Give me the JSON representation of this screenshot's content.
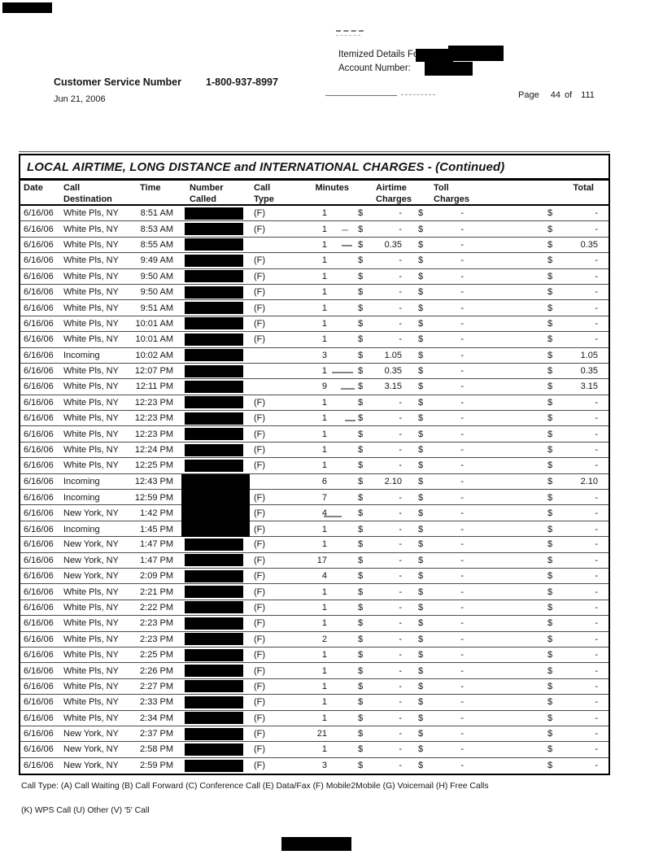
{
  "header": {
    "itemized_label": "Itemized Details For:",
    "account_label": "Account Number:",
    "customer_service_label": "Customer Service Number",
    "customer_service_number": "1-800-937-8997",
    "print_date": "Jun 21, 2006",
    "page": {
      "label": "Page",
      "current": "44",
      "of_label": "of",
      "total": "111"
    }
  },
  "table": {
    "title": "LOCAL AIRTIME, LONG DISTANCE and INTERNATIONAL CHARGES  - (Continued)",
    "currency": "$",
    "columns": {
      "date": "Date",
      "destination": "Call\nDestination",
      "time": "Time",
      "number_called": "Number\nCalled",
      "call_type": "Call\nType",
      "minutes": "Minutes",
      "airtime": "Airtime\nCharges",
      "toll": "Toll\nCharges",
      "total": "Total"
    },
    "rows": [
      {
        "date": "6/16/06",
        "destination": "White Pls, NY",
        "time": "8:51 AM",
        "type": "(F)",
        "minutes": "1",
        "airtime": "-",
        "toll": "-",
        "total": "-"
      },
      {
        "date": "6/16/06",
        "destination": "White Pls, NY",
        "time": "8:53 AM",
        "type": "(F)",
        "minutes": "1",
        "airtime": "-",
        "toll": "-",
        "total": "-"
      },
      {
        "date": "6/16/06",
        "destination": "White Pls, NY",
        "time": "8:55 AM",
        "type": "",
        "minutes": "1",
        "airtime": "0.35",
        "toll": "-",
        "total": "0.35"
      },
      {
        "date": "6/16/06",
        "destination": "White Pls, NY",
        "time": "9:49 AM",
        "type": "(F)",
        "minutes": "1",
        "airtime": "-",
        "toll": "-",
        "total": "-"
      },
      {
        "date": "6/16/06",
        "destination": "White Pls, NY",
        "time": "9:50 AM",
        "type": "(F)",
        "minutes": "1",
        "airtime": "-",
        "toll": "-",
        "total": "-"
      },
      {
        "date": "6/16/06",
        "destination": "White Pls, NY",
        "time": "9:50 AM",
        "type": "(F)",
        "minutes": "1",
        "airtime": "-",
        "toll": "-",
        "total": "-"
      },
      {
        "date": "6/16/06",
        "destination": "White Pls, NY",
        "time": "9:51 AM",
        "type": "(F)",
        "minutes": "1",
        "airtime": "-",
        "toll": "-",
        "total": "-"
      },
      {
        "date": "6/16/06",
        "destination": "White Pls, NY",
        "time": "10:01 AM",
        "type": "(F)",
        "minutes": "1",
        "airtime": "-",
        "toll": "-",
        "total": "-"
      },
      {
        "date": "6/16/06",
        "destination": "White Pls, NY",
        "time": "10:01 AM",
        "type": "(F)",
        "minutes": "1",
        "airtime": "-",
        "toll": "-",
        "total": "-"
      },
      {
        "date": "6/16/06",
        "destination": "Incoming",
        "time": "10:02 AM",
        "type": "",
        "minutes": "3",
        "airtime": "1.05",
        "toll": "-",
        "total": "1.05"
      },
      {
        "date": "6/16/06",
        "destination": "White Pls, NY",
        "time": "12:07 PM",
        "type": "",
        "minutes": "1",
        "airtime": "0.35",
        "toll": "-",
        "total": "0.35"
      },
      {
        "date": "6/16/06",
        "destination": "White Pls, NY",
        "time": "12:11 PM",
        "type": "",
        "minutes": "9",
        "airtime": "3.15",
        "toll": "-",
        "total": "3.15"
      },
      {
        "date": "6/16/06",
        "destination": "White Pls, NY",
        "time": "12:23 PM",
        "type": "(F)",
        "minutes": "1",
        "airtime": "-",
        "toll": "-",
        "total": "-"
      },
      {
        "date": "6/16/06",
        "destination": "White Pls, NY",
        "time": "12:23 PM",
        "type": "(F)",
        "minutes": "1",
        "airtime": "-",
        "toll": "-",
        "total": "-"
      },
      {
        "date": "6/16/06",
        "destination": "White Pls, NY",
        "time": "12:23 PM",
        "type": "(F)",
        "minutes": "1",
        "airtime": "-",
        "toll": "-",
        "total": "-"
      },
      {
        "date": "6/16/06",
        "destination": "White Pls, NY",
        "time": "12:24 PM",
        "type": "(F)",
        "minutes": "1",
        "airtime": "-",
        "toll": "-",
        "total": "-"
      },
      {
        "date": "6/16/06",
        "destination": "White Pls, NY",
        "time": "12:25 PM",
        "type": "(F)",
        "minutes": "1",
        "airtime": "-",
        "toll": "-",
        "total": "-"
      },
      {
        "date": "6/16/06",
        "destination": "Incoming",
        "time": "12:43 PM",
        "type": "",
        "minutes": "6",
        "airtime": "2.10",
        "toll": "-",
        "total": "2.10",
        "merged_bar": true
      },
      {
        "date": "6/16/06",
        "destination": "Incoming",
        "time": "12:59 PM",
        "type": "(F)",
        "minutes": "7",
        "airtime": "-",
        "toll": "-",
        "total": "-",
        "merged_bar": true
      },
      {
        "date": "6/16/06",
        "destination": "New York, NY",
        "time": "1:42 PM",
        "type": "(F)",
        "minutes": "4",
        "airtime": "-",
        "toll": "-",
        "total": "-",
        "merged_bar": true
      },
      {
        "date": "6/16/06",
        "destination": "Incoming",
        "time": "1:45 PM",
        "type": "(F)",
        "minutes": "1",
        "airtime": "-",
        "toll": "-",
        "total": "-",
        "merged_bar": true
      },
      {
        "date": "6/16/06",
        "destination": "New York, NY",
        "time": "1:47 PM",
        "type": "(F)",
        "minutes": "1",
        "airtime": "-",
        "toll": "-",
        "total": "-"
      },
      {
        "date": "6/16/06",
        "destination": "New York, NY",
        "time": "1:47 PM",
        "type": "(F)",
        "minutes": "17",
        "airtime": "-",
        "toll": "-",
        "total": "-"
      },
      {
        "date": "6/16/06",
        "destination": "New York, NY",
        "time": "2:09 PM",
        "type": "(F)",
        "minutes": "4",
        "airtime": "-",
        "toll": "-",
        "total": "-"
      },
      {
        "date": "6/16/06",
        "destination": "White Pls, NY",
        "time": "2:21 PM",
        "type": "(F)",
        "minutes": "1",
        "airtime": "-",
        "toll": "-",
        "total": "-"
      },
      {
        "date": "6/16/06",
        "destination": "White Pls, NY",
        "time": "2:22 PM",
        "type": "(F)",
        "minutes": "1",
        "airtime": "-",
        "toll": "-",
        "total": "-"
      },
      {
        "date": "6/16/06",
        "destination": "White Pls, NY",
        "time": "2:23 PM",
        "type": "(F)",
        "minutes": "1",
        "airtime": "-",
        "toll": "-",
        "total": "-"
      },
      {
        "date": "6/16/06",
        "destination": "White Pls, NY",
        "time": "2:23 PM",
        "type": "(F)",
        "minutes": "2",
        "airtime": "-",
        "toll": "-",
        "total": "-"
      },
      {
        "date": "6/16/06",
        "destination": "White Pls, NY",
        "time": "2:25 PM",
        "type": "(F)",
        "minutes": "1",
        "airtime": "-",
        "toll": "-",
        "total": "-"
      },
      {
        "date": "6/16/06",
        "destination": "White Pls, NY",
        "time": "2:26 PM",
        "type": "(F)",
        "minutes": "1",
        "airtime": "-",
        "toll": "-",
        "total": "-"
      },
      {
        "date": "6/16/06",
        "destination": "White Pls, NY",
        "time": "2:27 PM",
        "type": "(F)",
        "minutes": "1",
        "airtime": "-",
        "toll": "-",
        "total": "-"
      },
      {
        "date": "6/16/06",
        "destination": "White Pls, NY",
        "time": "2:33 PM",
        "type": "(F)",
        "minutes": "1",
        "airtime": "-",
        "toll": "-",
        "total": "-"
      },
      {
        "date": "6/16/06",
        "destination": "White Pls, NY",
        "time": "2:34 PM",
        "type": "(F)",
        "minutes": "1",
        "airtime": "-",
        "toll": "-",
        "total": "-"
      },
      {
        "date": "6/16/06",
        "destination": "New York, NY",
        "time": "2:37 PM",
        "type": "(F)",
        "minutes": "21",
        "airtime": "-",
        "toll": "-",
        "total": "-"
      },
      {
        "date": "6/16/06",
        "destination": "New York, NY",
        "time": "2:58 PM",
        "type": "(F)",
        "minutes": "1",
        "airtime": "-",
        "toll": "-",
        "total": "-"
      },
      {
        "date": "6/16/06",
        "destination": "New York, NY",
        "time": "2:59 PM",
        "type": "(F)",
        "minutes": "3",
        "airtime": "-",
        "toll": "-",
        "total": "-"
      }
    ]
  },
  "footer": {
    "legend_line1": "Call Type: (A) Call Waiting (B) Call Forward (C) Conference Call (E) Data/Fax (F) Mobile2Mobile (G) Voicemail (H) Free Calls",
    "legend_line2": "(K) WPS Call (U) Other (V) '5' Call"
  }
}
